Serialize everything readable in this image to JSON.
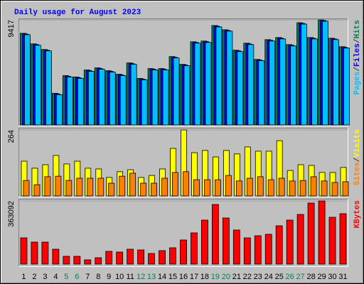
{
  "title": "Daily usage for August 2023",
  "title_color": "#0000ff",
  "separator": "/",
  "chart_data": [
    {
      "type": "bar",
      "ylim": [
        0,
        9417
      ],
      "yticks": [
        9417
      ],
      "series": [
        {
          "name": "Hits",
          "color": "#00805c",
          "values": [
            8216,
            7268,
            6762,
            2844,
            4424,
            4297,
            4929,
            5119,
            4866,
            4550,
            5561,
            4171,
            5056,
            5056,
            6130,
            5435,
            7457,
            7520,
            8911,
            8532,
            6699,
            7331,
            5877,
            7647,
            7836,
            7204,
            9164,
            7836,
            9417,
            7773,
            7015
          ]
        },
        {
          "name": "Files",
          "color": "#0000ff",
          "values": [
            8153,
            7205,
            6699,
            2781,
            4361,
            4234,
            4866,
            5056,
            4803,
            4487,
            5498,
            4108,
            4993,
            4993,
            6067,
            5372,
            7394,
            7457,
            8848,
            8469,
            6636,
            7268,
            5814,
            7584,
            7773,
            7141,
            9101,
            7773,
            9353,
            7710,
            6952
          ]
        },
        {
          "name": "Pages",
          "color": "#00c0ff",
          "values": [
            8090,
            7142,
            6636,
            2718,
            4298,
            4171,
            4803,
            4993,
            4740,
            4424,
            5435,
            4045,
            4930,
            4930,
            6004,
            5309,
            7331,
            7394,
            8785,
            8406,
            6573,
            7205,
            5751,
            7521,
            7710,
            7078,
            9038,
            7710,
            9290,
            7647,
            6889
          ]
        }
      ]
    },
    {
      "type": "bar",
      "ylim": [
        0,
        264
      ],
      "yticks": [
        264
      ],
      "series": [
        {
          "name": "Visits",
          "color": "#ffff00",
          "values": [
            139,
            111,
            125,
            162,
            128,
            139,
            111,
            108,
            74,
            97,
            105,
            74,
            82,
            108,
            190,
            264,
            173,
            182,
            156,
            182,
            168,
            196,
            179,
            179,
            221,
            102,
            125,
            122,
            94,
            94,
            114
          ]
        },
        {
          "name": "Sites",
          "color": "#ff8000",
          "values": [
            62,
            45,
            77,
            79,
            62,
            71,
            71,
            71,
            51,
            79,
            91,
            51,
            51,
            71,
            94,
            97,
            65,
            65,
            65,
            82,
            60,
            71,
            77,
            65,
            71,
            60,
            62,
            77,
            60,
            54,
            57
          ]
        }
      ]
    },
    {
      "type": "bar",
      "ylim": [
        0,
        363092
      ],
      "yticks": [
        363092
      ],
      "categories": [
        "1",
        "2",
        "3",
        "4",
        "5",
        "6",
        "7",
        "8",
        "9",
        "10",
        "11",
        "12",
        "13",
        "14",
        "15",
        "16",
        "17",
        "18",
        "19",
        "20",
        "21",
        "22",
        "23",
        "24",
        "25",
        "26",
        "27",
        "28",
        "29",
        "30",
        "31"
      ],
      "categories_color": [
        "#000000",
        "#000000",
        "#000000",
        "#000000",
        "#00805c",
        "#00805c",
        "#000000",
        "#000000",
        "#000000",
        "#000000",
        "#000000",
        "#00805c",
        "#00805c",
        "#000000",
        "#000000",
        "#000000",
        "#000000",
        "#000000",
        "#00805c",
        "#00805c",
        "#000000",
        "#000000",
        "#000000",
        "#000000",
        "#000000",
        "#00805c",
        "#00805c",
        "#000000",
        "#000000",
        "#000000",
        "#000000"
      ],
      "series": [
        {
          "name": "KBytes",
          "color": "#ff0000",
          "values": [
            150960,
            126480,
            126480,
            85680,
            44880,
            44880,
            24480,
            36720,
            73440,
            69360,
            85680,
            81600,
            61200,
            77520,
            93840,
            138720,
            179520,
            252960,
            342720,
            265200,
            195840,
            150960,
            163200,
            171360,
            220320,
            252960,
            285600,
            350880,
            363092,
            269280,
            289680
          ]
        }
      ]
    }
  ]
}
